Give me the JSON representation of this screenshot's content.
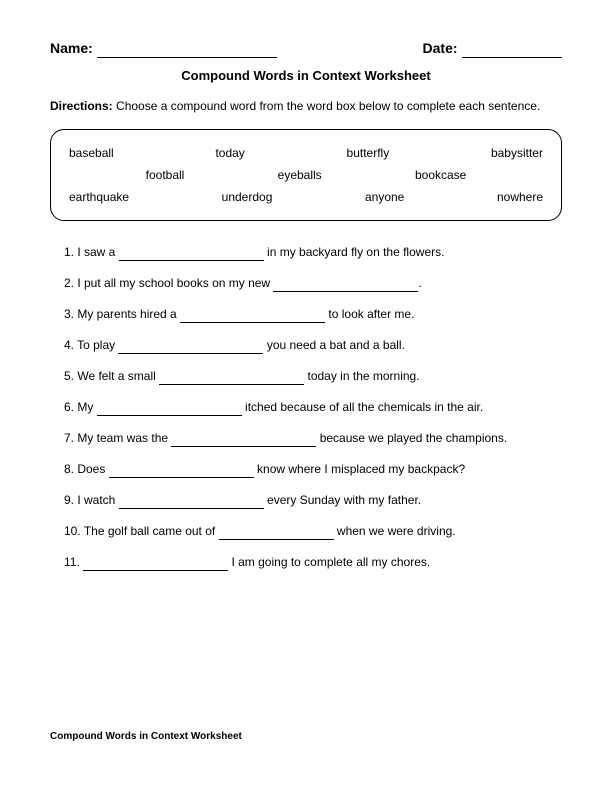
{
  "header": {
    "name_label": "Name:",
    "date_label": "Date:"
  },
  "title": "Compound Words in Context Worksheet",
  "directions": {
    "label": "Directions:",
    "text": "Choose a compound word from the word box below to complete each sentence."
  },
  "wordbox": {
    "row1": [
      "baseball",
      "today",
      "butterfly",
      "babysitter"
    ],
    "row2": [
      "football",
      "eyeballs",
      "bookcase"
    ],
    "row3": [
      "earthquake",
      "underdog",
      "anyone",
      "nowhere"
    ]
  },
  "sentences": [
    {
      "num": "1.",
      "pre": "I saw a ",
      "post": " in my backyard fly on the flowers."
    },
    {
      "num": "2.",
      "pre": "I put all my school books on my new ",
      "post": "."
    },
    {
      "num": "3.",
      "pre": "My parents hired a ",
      "post": " to look after me."
    },
    {
      "num": "4.",
      "pre": "To play ",
      "post": " you need a bat and a ball."
    },
    {
      "num": "5.",
      "pre": "We felt a small ",
      "post": " today in the morning."
    },
    {
      "num": "6.",
      "pre": "My ",
      "post": " itched because of all the chemicals in the air."
    },
    {
      "num": "7.",
      "pre": "My team was the ",
      "post": " because we played the champions."
    },
    {
      "num": "8.",
      "pre": "Does ",
      "post": " know where I misplaced my backpack?"
    },
    {
      "num": "9.",
      "pre": "I watch ",
      "post": " every Sunday with my father."
    },
    {
      "num": "10.",
      "pre": "The golf ball came out of ",
      "post": " when we were driving.",
      "short": true
    },
    {
      "num": "11.",
      "pre": "",
      "post": " I am going to complete all my chores."
    }
  ],
  "footer": "Compound Words in Context Worksheet"
}
